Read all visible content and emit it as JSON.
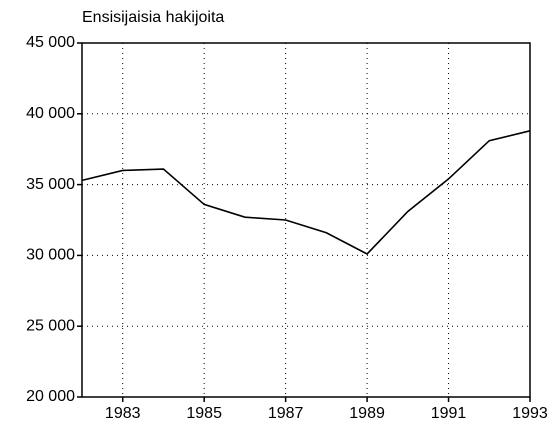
{
  "chart_data": {
    "type": "line",
    "title": "Ensisijaisia hakijoita",
    "x": [
      1982,
      1983,
      1984,
      1985,
      1986,
      1987,
      1988,
      1989,
      1990,
      1991,
      1992,
      1993
    ],
    "series": [
      {
        "name": "Ensisijaisia hakijoita",
        "color": "#000000",
        "values": [
          35300,
          36000,
          36100,
          33600,
          32700,
          32500,
          31600,
          30100,
          33100,
          35400,
          38100,
          38800
        ]
      }
    ],
    "xlim": [
      1982,
      1993
    ],
    "xticks": [
      1983,
      1985,
      1987,
      1989,
      1991,
      1993
    ],
    "ylim": [
      20000,
      45000
    ],
    "yticks": [
      {
        "value": 20000,
        "label": "20 000"
      },
      {
        "value": 25000,
        "label": "25 000"
      },
      {
        "value": 30000,
        "label": "30 000"
      },
      {
        "value": 35000,
        "label": "35 000"
      },
      {
        "value": 40000,
        "label": "40 000"
      },
      {
        "value": 45000,
        "label": "45 000"
      }
    ],
    "grid": true
  }
}
